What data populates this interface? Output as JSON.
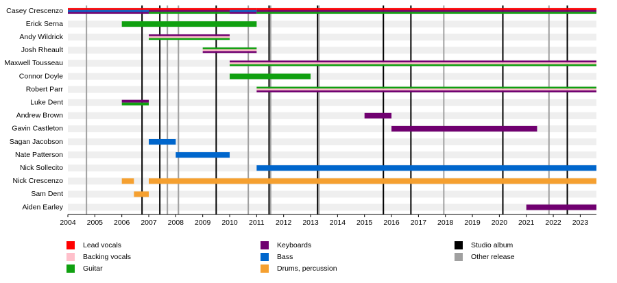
{
  "chart_data": {
    "type": "timeline",
    "xlim": [
      2004,
      2023.6
    ],
    "xticks": [
      2004,
      2005,
      2006,
      2007,
      2008,
      2009,
      2010,
      2011,
      2012,
      2013,
      2014,
      2015,
      2016,
      2017,
      2018,
      2019,
      2020,
      2021,
      2022,
      2023
    ],
    "roles": [
      {
        "name": "Lead vocals",
        "color": "#ff0000"
      },
      {
        "name": "Backing vocals",
        "color": "#ffc0cb"
      },
      {
        "name": "Guitar",
        "color": "#10a010"
      },
      {
        "name": "Keyboards",
        "color": "#700070"
      },
      {
        "name": "Bass",
        "color": "#0066cc"
      },
      {
        "name": "Drums, percussion",
        "color": "#f5a030"
      }
    ],
    "releases": [
      {
        "name": "Studio album",
        "color": "#000000",
        "values": [
          2006.75,
          2007.41,
          2009.5,
          2011.46,
          2013.26,
          2015.7,
          2016.72,
          2020.13,
          2022.52
        ]
      },
      {
        "name": "Other release",
        "color": "#a0a0a0",
        "values": [
          2004.69,
          2007.69,
          2008.1,
          2010.69,
          2011.52,
          2013.31,
          2017.94,
          2021.84
        ]
      }
    ],
    "members": [
      {
        "name": "Casey Crescenzo",
        "periods": [
          {
            "start": 2004,
            "end": 2007,
            "roles": [
              "Lead vocals",
              "Bass",
              "Keyboards"
            ]
          },
          {
            "start": 2007,
            "end": 2010,
            "roles": [
              "Lead vocals",
              "Keyboards",
              "Guitar"
            ]
          },
          {
            "start": 2010,
            "end": 2011,
            "roles": [
              "Lead vocals",
              "Bass",
              "Keyboards"
            ]
          },
          {
            "start": 2011,
            "end": 2023.6,
            "roles": [
              "Lead vocals",
              "Keyboards",
              "Guitar"
            ]
          }
        ]
      },
      {
        "name": "Erick Serna",
        "periods": [
          {
            "start": 2006,
            "end": 2011,
            "roles": [
              "Guitar"
            ]
          }
        ]
      },
      {
        "name": "Andy Wildrick",
        "periods": [
          {
            "start": 2007,
            "end": 2010,
            "roles": [
              "Keyboards",
              "Backing vocals",
              "Guitar"
            ]
          }
        ]
      },
      {
        "name": "Josh Rheault",
        "periods": [
          {
            "start": 2009,
            "end": 2011,
            "roles": [
              "Guitar",
              "Backing vocals",
              "Keyboards"
            ]
          }
        ]
      },
      {
        "name": "Maxwell Tousseau",
        "periods": [
          {
            "start": 2010,
            "end": 2023.6,
            "roles": [
              "Keyboards",
              "Backing vocals",
              "Guitar"
            ]
          }
        ]
      },
      {
        "name": "Connor Doyle",
        "periods": [
          {
            "start": 2010,
            "end": 2013,
            "roles": [
              "Guitar"
            ]
          }
        ]
      },
      {
        "name": "Robert Parr",
        "periods": [
          {
            "start": 2011,
            "end": 2023.6,
            "roles": [
              "Guitar",
              "Backing vocals",
              "Keyboards"
            ]
          }
        ]
      },
      {
        "name": "Luke Dent",
        "periods": [
          {
            "start": 2006,
            "end": 2007,
            "roles": [
              "Keyboards",
              "Guitar"
            ]
          }
        ]
      },
      {
        "name": "Andrew Brown",
        "periods": [
          {
            "start": 2015,
            "end": 2016,
            "roles": [
              "Keyboards"
            ]
          }
        ]
      },
      {
        "name": "Gavin Castleton",
        "periods": [
          {
            "start": 2016,
            "end": 2021.4,
            "roles": [
              "Keyboards"
            ]
          }
        ]
      },
      {
        "name": "Sagan Jacobson",
        "periods": [
          {
            "start": 2007,
            "end": 2008,
            "roles": [
              "Bass"
            ]
          }
        ]
      },
      {
        "name": "Nate Patterson",
        "periods": [
          {
            "start": 2008,
            "end": 2010,
            "roles": [
              "Bass"
            ]
          }
        ]
      },
      {
        "name": "Nick Sollecito",
        "periods": [
          {
            "start": 2011,
            "end": 2023.6,
            "roles": [
              "Bass"
            ]
          }
        ]
      },
      {
        "name": "Nick Crescenzo",
        "periods": [
          {
            "start": 2006,
            "end": 2006.45,
            "roles": [
              "Drums, percussion"
            ]
          },
          {
            "start": 2007,
            "end": 2023.6,
            "roles": [
              "Drums, percussion"
            ]
          }
        ]
      },
      {
        "name": "Sam Dent",
        "periods": [
          {
            "start": 2006.45,
            "end": 2007,
            "roles": [
              "Drums, percussion"
            ]
          }
        ]
      },
      {
        "name": "Aiden Earley",
        "periods": [
          {
            "start": 2021,
            "end": 2023.6,
            "roles": [
              "Keyboards"
            ]
          }
        ]
      }
    ]
  }
}
